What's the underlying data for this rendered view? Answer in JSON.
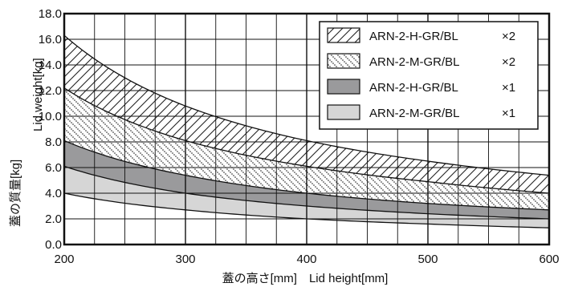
{
  "colors": {
    "frame": "#111111",
    "grid": "#111111",
    "band_dark": "#9a9a9c",
    "band_light": "#d6d6d6",
    "hatch": "#222222"
  },
  "chart_data": {
    "type": "area",
    "xlabel": "蓋の高さ[mm]　Lid height[mm]",
    "ylabel_jp": "蓋の質量[kg]",
    "ylabel_en": "Lid weight[kg]",
    "xlim": [
      200,
      600
    ],
    "ylim": [
      0,
      18
    ],
    "x_ticks": [
      "200",
      "300",
      "400",
      "500",
      "600"
    ],
    "y_ticks": [
      "0.0",
      "2.0",
      "4.0",
      "6.0",
      "8.0",
      "10.0",
      "12.0",
      "14.0",
      "16.0",
      "18.0"
    ],
    "x_grid_step": 25,
    "y_grid_step": 2,
    "legend_position": "top-right",
    "series": [
      {
        "name": "ARN-2-H-GR/BL ×2",
        "legend_name": "ARN-2-H-GR/BL",
        "legend_mult": "×2",
        "fill": "diagonal-hatch",
        "x": [
          200,
          300,
          400,
          500,
          600
        ],
        "lower": [
          12.2,
          8.1,
          6.1,
          4.9,
          4.0
        ],
        "upper": [
          16.3,
          10.8,
          8.1,
          6.5,
          5.4
        ]
      },
      {
        "name": "ARN-2-M-GR/BL ×2",
        "legend_name": "ARN-2-M-GR/BL",
        "legend_mult": "×2",
        "fill": "dotted-hatch",
        "x": [
          200,
          300,
          400,
          500,
          600
        ],
        "lower": [
          8.1,
          5.4,
          4.0,
          3.2,
          2.7
        ],
        "upper": [
          12.2,
          8.1,
          6.1,
          4.9,
          4.0
        ]
      },
      {
        "name": "ARN-2-H-GR/BL ×1",
        "legend_name": "ARN-2-H-GR/BL",
        "legend_mult": "×1",
        "fill": "dark-gray",
        "x": [
          200,
          300,
          400,
          500,
          600
        ],
        "lower": [
          6.1,
          4.0,
          3.0,
          2.4,
          2.0
        ],
        "upper": [
          8.1,
          5.4,
          4.0,
          3.2,
          2.7
        ]
      },
      {
        "name": "ARN-2-M-GR/BL ×1",
        "legend_name": "ARN-2-M-GR/BL",
        "legend_mult": "×1",
        "fill": "light-gray",
        "x": [
          200,
          300,
          400,
          500,
          600
        ],
        "lower": [
          4.0,
          2.7,
          2.0,
          1.6,
          1.3
        ],
        "upper": [
          6.1,
          4.0,
          3.0,
          2.4,
          2.0
        ]
      }
    ]
  }
}
